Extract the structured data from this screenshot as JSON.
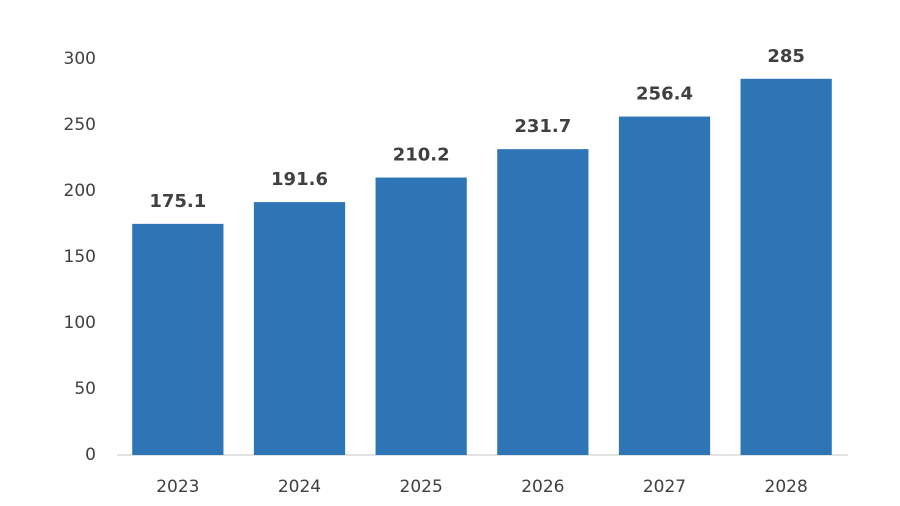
{
  "chart_data": {
    "type": "bar",
    "categories": [
      "2023",
      "2024",
      "2025",
      "2026",
      "2027",
      "2028"
    ],
    "values": [
      175.1,
      191.6,
      210.2,
      231.7,
      256.4,
      285
    ],
    "color": "#2e75b6",
    "ylim": [
      0,
      300
    ],
    "yticks": [
      0,
      50,
      100,
      150,
      200,
      250,
      300
    ],
    "grid": false
  }
}
